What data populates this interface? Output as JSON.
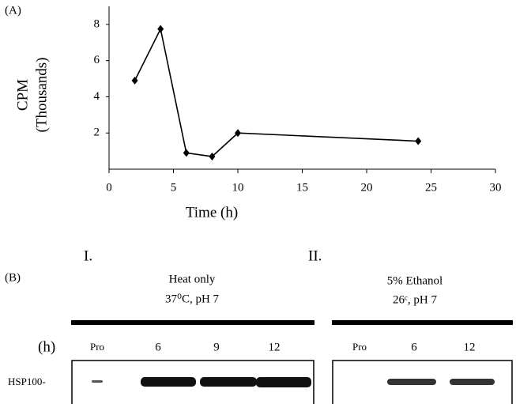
{
  "chart_data": {
    "type": "line",
    "panel_label": "(A)",
    "xlabel": "Time (h)",
    "ylabel": [
      "CPM",
      "(Thousands)"
    ],
    "x": [
      2,
      4,
      6,
      8,
      10,
      24
    ],
    "series": [
      {
        "color": "#000000",
        "values": [
          4.9,
          7.75,
          0.9,
          0.7,
          2.0,
          1.55
        ]
      }
    ],
    "xlim": [
      0,
      30
    ],
    "xticks": [
      0,
      5,
      10,
      15,
      20,
      25,
      30
    ],
    "ylim": [
      0,
      9
    ],
    "yticks": [
      2,
      4,
      6,
      8
    ],
    "grid": false
  },
  "panel_b": {
    "panel_label": "(B)",
    "unit": "(h)",
    "band_label": "HSP100-",
    "groups": [
      {
        "numeral": "I.",
        "condition": [
          "Heat only",
          "37⁰C, pH 7"
        ],
        "lanes": [
          "Pro",
          "6",
          "9",
          "12"
        ]
      },
      {
        "numeral": "II.",
        "condition": [
          "5% Ethanol",
          "26ᶜ, pH 7"
        ],
        "lanes": [
          "Pro",
          "6",
          "12"
        ]
      }
    ]
  }
}
